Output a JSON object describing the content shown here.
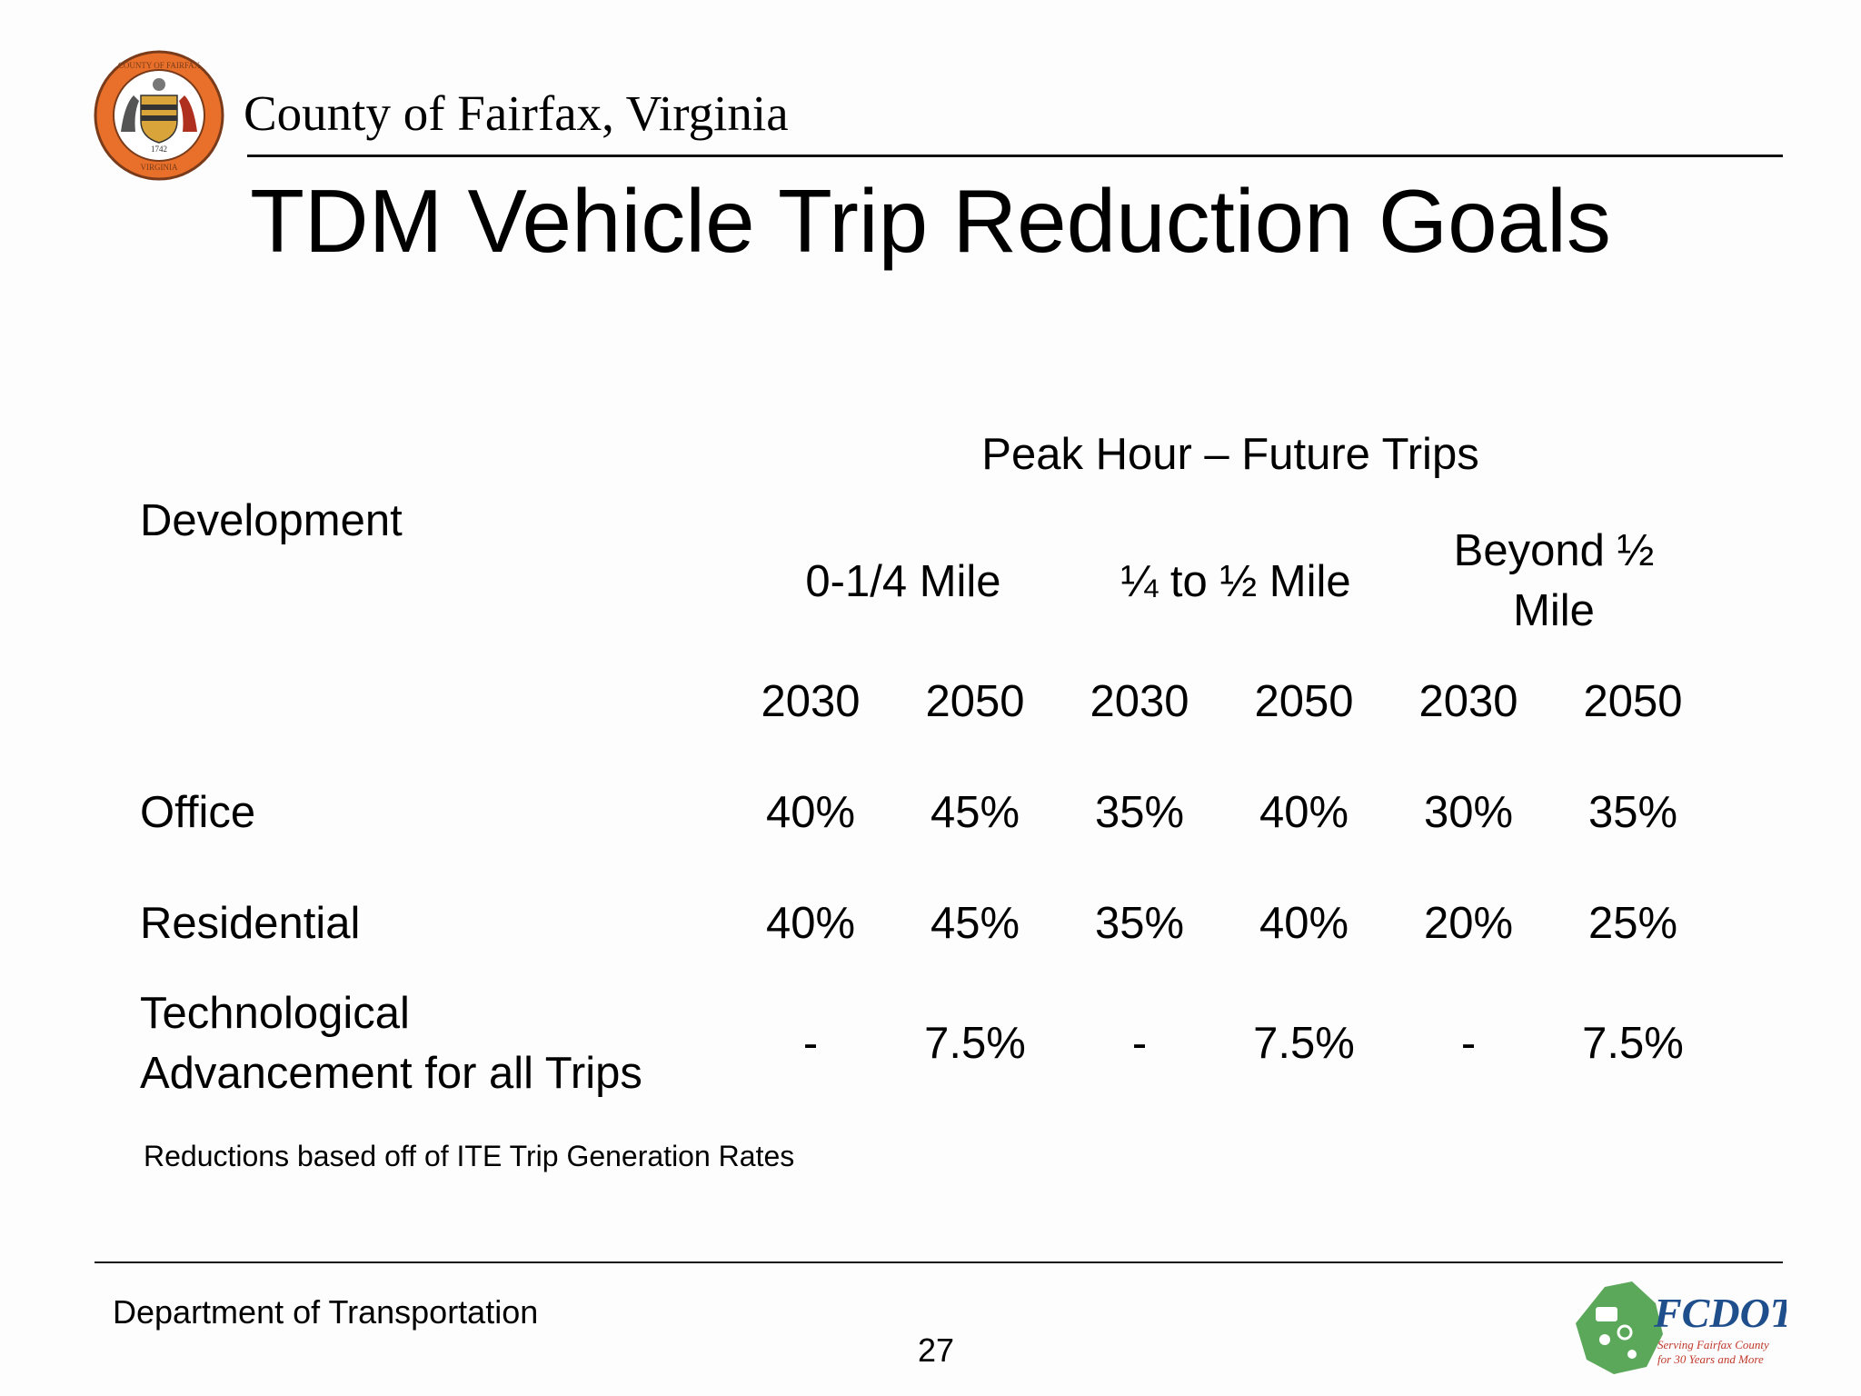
{
  "header": {
    "county_name": "County of Fairfax, Virginia",
    "seal_text": [
      "COUNTY OF FAIRFAX",
      "1742",
      "VIRGINIA"
    ],
    "seal_colors": {
      "ring": "#e8702a",
      "dark": "#7a3b1a"
    }
  },
  "title": "TDM Vehicle Trip Reduction Goals",
  "table": {
    "row_header": "Development",
    "group_header": "Peak Hour – Future Trips",
    "bands": [
      {
        "label": "0-1/4 Mile"
      },
      {
        "label": "¼ to ½ Mile"
      },
      {
        "label_lines": [
          "Beyond ½",
          "Mile"
        ]
      }
    ],
    "years": [
      "2030",
      "2050",
      "2030",
      "2050",
      "2030",
      "2050"
    ],
    "rows": [
      {
        "label": "Office",
        "values": [
          "40%",
          "45%",
          "35%",
          "40%",
          "30%",
          "35%"
        ]
      },
      {
        "label": "Residential",
        "values": [
          "40%",
          "45%",
          "35%",
          "40%",
          "20%",
          "25%"
        ]
      },
      {
        "label_lines": [
          "Technological",
          "Advancement for all Trips"
        ],
        "values": [
          "-",
          "7.5%",
          "-",
          "7.5%",
          "-",
          "7.5%"
        ]
      }
    ]
  },
  "footnote": "Reductions based off of ITE Trip Generation Rates",
  "footer": {
    "department": "Department of Transportation",
    "page_number": "27",
    "logo": {
      "name": "FCDOT",
      "tagline_lines": [
        "Serving Fairfax County",
        "for 30 Years and More"
      ],
      "colors": {
        "brand": "#1f4e8c",
        "accent": "#c0392b",
        "map": "#5ba85a"
      }
    }
  }
}
